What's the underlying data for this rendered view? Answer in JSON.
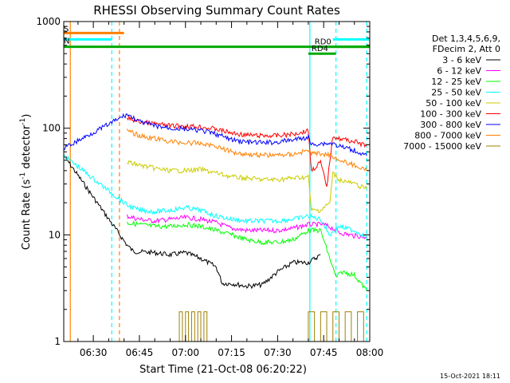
{
  "chart_data": {
    "type": "line",
    "title": "RHESSI Observing Summary Count Rates",
    "xlabel": "Start Time (21-Oct-08 06:20:22)",
    "ylabel_main": "Count Rate (s",
    "ylabel_sup": "-1",
    "ylabel_tail": " detector",
    "ylabel_close": ")",
    "yscale": "log",
    "xlim": [
      "06:20:22",
      "08:00:00"
    ],
    "ylim": [
      1,
      1000
    ],
    "y_ticks": [
      {
        "value": 1,
        "label": "1"
      },
      {
        "value": 10,
        "label": "10"
      },
      {
        "value": 100,
        "label": "100"
      },
      {
        "value": 1000,
        "label": "1000"
      }
    ],
    "x_ticks": [
      {
        "value": "06:30",
        "label": "06:30"
      },
      {
        "value": "06:45",
        "label": "06:45"
      },
      {
        "value": "07:00",
        "label": "07:00"
      },
      {
        "value": "07:15",
        "label": "07:15"
      },
      {
        "value": "07:30",
        "label": "07:30"
      },
      {
        "value": "07:45",
        "label": "07:45"
      },
      {
        "value": "08:00",
        "label": "08:00"
      }
    ],
    "legend_header": [
      "Det 1,3,4,5,6,9,",
      "FDecim 2, Att 0"
    ],
    "legend_position": "right",
    "series": [
      {
        "name": "3 - 6 keV",
        "color": "#000000",
        "x": [
          "06:20:30",
          "06:41:00",
          "06:43:00",
          "06:50:00",
          "06:55:00",
          "07:00:00",
          "07:05:00",
          "07:10:00",
          "07:12:00",
          "07:15:00",
          "07:20:00",
          "07:25:00",
          "07:30:00",
          "07:35:00",
          "07:40:00",
          "07:44:00"
        ],
        "y": [
          55,
          8,
          7,
          6.8,
          6.5,
          6.8,
          6,
          5,
          3.5,
          3.5,
          3.3,
          3.4,
          4.5,
          5.5,
          5.5,
          6.5
        ]
      },
      {
        "name": "6 - 12 keV",
        "color": "#ff00ff",
        "x": [
          "06:41:00",
          "06:45:00",
          "06:50:00",
          "06:55:00",
          "07:00:00",
          "07:05:00",
          "07:10:00",
          "07:15:00",
          "07:20:00",
          "07:25:00",
          "07:30:00",
          "07:35:00",
          "07:40:00",
          "07:45:00",
          "07:48:00",
          "07:50:00",
          "07:55:00",
          "07:59:00"
        ],
        "y": [
          15,
          14,
          13.5,
          14,
          14.5,
          14,
          13,
          11.5,
          11,
          11,
          11,
          11.5,
          12.5,
          12.5,
          11.5,
          10.5,
          9.8,
          9.5
        ]
      },
      {
        "name": "12 - 25 keV",
        "color": "#00ff00",
        "x": [
          "06:41:00",
          "06:45:00",
          "06:50:00",
          "06:55:00",
          "07:00:00",
          "07:05:00",
          "07:10:00",
          "07:15:00",
          "07:20:00",
          "07:25:00",
          "07:30:00",
          "07:35:00",
          "07:40:00",
          "07:44:00",
          "07:47:00",
          "07:49:00",
          "07:51:00",
          "07:55:00",
          "07:59:00"
        ],
        "y": [
          13,
          12.5,
          12,
          12,
          12.5,
          12,
          11,
          10,
          9,
          8.5,
          8.5,
          9,
          11,
          11,
          6,
          4,
          4.5,
          4.2,
          3
        ]
      },
      {
        "name": "25 - 50 keV",
        "color": "#00ffff",
        "x": [
          "06:20:30",
          "06:41:00",
          "06:45:00",
          "06:50:00",
          "06:55:00",
          "07:00:00",
          "07:05:00",
          "07:10:00",
          "07:15:00",
          "07:20:00",
          "07:25:00",
          "07:30:00",
          "07:35:00",
          "07:40:00",
          "07:44:00",
          "07:47:00",
          "07:50:00",
          "07:55:00",
          "07:59:00"
        ],
        "y": [
          55,
          19,
          17,
          16.5,
          17,
          18,
          17,
          15,
          14,
          13.5,
          13.5,
          13.5,
          14,
          15,
          14,
          10,
          12,
          11,
          9.5
        ]
      },
      {
        "name": "50 - 100 keV",
        "color": "#cccc00",
        "x": [
          "06:41:00",
          "06:45:00",
          "06:50:00",
          "06:55:00",
          "07:00:00",
          "07:05:00",
          "07:10:00",
          "07:15:00",
          "07:20:00",
          "07:25:00",
          "07:30:00",
          "07:35:00",
          "07:40:00",
          "07:41:00",
          "07:44:00",
          "07:47:00",
          "07:48:00",
          "07:50:00",
          "07:55:00",
          "07:59:00"
        ],
        "y": [
          48,
          45,
          42,
          40,
          40,
          41,
          38,
          35,
          34,
          33,
          33,
          34,
          35,
          17,
          17,
          20,
          38,
          33,
          30,
          27
        ]
      },
      {
        "name": "100 - 300 keV",
        "color": "#ff0000",
        "x": [
          "06:41:00",
          "06:45:00",
          "06:50:00",
          "06:55:00",
          "07:00:00",
          "07:05:00",
          "07:10:00",
          "07:15:00",
          "07:20:00",
          "07:25:00",
          "07:30:00",
          "07:35:00",
          "07:40:00",
          "07:41:00",
          "07:44:00",
          "07:46:00",
          "07:48:00",
          "07:50:00",
          "07:55:00",
          "07:59:00"
        ],
        "y": [
          125,
          115,
          110,
          105,
          105,
          103,
          98,
          90,
          86,
          85,
          85,
          88,
          95,
          40,
          48,
          28,
          85,
          80,
          75,
          68
        ]
      },
      {
        "name": "300 - 800 keV",
        "color": "#0000ff",
        "x": [
          "06:20:30",
          "06:41:00",
          "06:45:00",
          "06:50:00",
          "06:55:00",
          "07:00:00",
          "07:05:00",
          "07:10:00",
          "07:15:00",
          "07:20:00",
          "07:25:00",
          "07:30:00",
          "07:35:00",
          "07:40:00",
          "07:41:00",
          "07:44:00",
          "07:48:00",
          "07:50:00",
          "07:55:00",
          "07:59:00"
        ],
        "y": [
          65,
          135,
          115,
          105,
          100,
          98,
          95,
          88,
          78,
          74,
          73,
          74,
          78,
          82,
          70,
          72,
          72,
          68,
          62,
          55
        ]
      },
      {
        "name": "800 - 7000 keV",
        "color": "#ff8000",
        "x": [
          "06:41:00",
          "06:45:00",
          "06:50:00",
          "06:55:00",
          "07:00:00",
          "07:05:00",
          "07:10:00",
          "07:15:00",
          "07:20:00",
          "07:25:00",
          "07:30:00",
          "07:35:00",
          "07:40:00",
          "07:41:00",
          "07:44:00",
          "07:48:00",
          "07:50:00",
          "07:55:00",
          "07:59:00"
        ],
        "y": [
          95,
          85,
          80,
          75,
          73,
          72,
          68,
          60,
          57,
          56,
          56,
          57,
          62,
          58,
          58,
          55,
          50,
          45,
          40
        ]
      },
      {
        "name": "7000 - 15000 keV",
        "color": "#a08000",
        "x": [
          "06:58:00",
          "06:59:00",
          "07:00:00",
          "07:01:00",
          "07:02:00",
          "07:03:00",
          "07:04:00",
          "07:05:00",
          "07:06:00",
          "07:07:00",
          "07:40:00",
          "07:42:00",
          "07:44:00",
          "07:46:00",
          "07:48:00",
          "07:50:00",
          "07:52:00",
          "07:54:00",
          "07:56:00",
          "07:58:00"
        ],
        "y": [
          1.9,
          1.0,
          1.9,
          1.0,
          1.9,
          1.0,
          1.9,
          1.0,
          1.9,
          1.0,
          1.9,
          1.0,
          1.9,
          1.0,
          1.9,
          1.0,
          1.9,
          1.0,
          1.9,
          1.0
        ]
      }
    ],
    "state_bars": [
      {
        "label": "",
        "color": "#00aa00",
        "from": "06:20:22",
        "to": "07:59:59",
        "y": 580
      },
      {
        "label": "RD0",
        "color": "#00aa00",
        "from": "07:41:00",
        "to": "07:59:59",
        "y": 580
      },
      {
        "label": "RD4",
        "color": "#00aa00",
        "from": "07:40:00",
        "to": "07:49:00",
        "y": 500
      },
      {
        "label": "S",
        "color": "#ff8000",
        "from": "06:20:22",
        "to": "06:40:00",
        "y": 780
      },
      {
        "label": "N",
        "color": "#00ffff",
        "from": "06:20:22",
        "to": "06:36:00",
        "y": 680
      },
      {
        "label": "",
        "color": "#00ffff",
        "from": "07:48:00",
        "to": "07:59:59",
        "y": 680
      }
    ],
    "vertical_markers": [
      {
        "time": "06:22:30",
        "color": "#ff8000",
        "style": "solid"
      },
      {
        "time": "06:36:00",
        "color": "#00ffff",
        "style": "dashed"
      },
      {
        "time": "06:38:30",
        "color": "#ff8000",
        "style": "dashed"
      },
      {
        "time": "07:40:30",
        "color": "#00ffff",
        "style": "solid"
      },
      {
        "time": "07:49:00",
        "color": "#00ffff",
        "style": "dashed"
      },
      {
        "time": "07:59:00",
        "color": "#00ffff",
        "style": "dashed"
      }
    ],
    "footer_stamp": "15-Oct-2021 18:11"
  }
}
